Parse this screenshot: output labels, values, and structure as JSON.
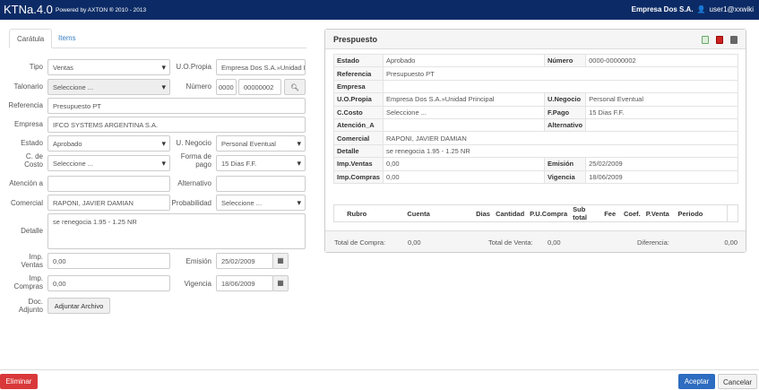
{
  "nav": {
    "brand": "KTNa.4.0",
    "powered": "Powered by AXTON ® 2010 - 2013",
    "company": "Empresa Dos S.A.",
    "user": "user1@xxwiki",
    "user_icon": "user-icon"
  },
  "tabs": [
    {
      "label": "Carátula",
      "active": true
    },
    {
      "label": "Items",
      "active": false
    }
  ],
  "form": {
    "tipo": {
      "label": "Tipo",
      "value": "Ventas"
    },
    "uopropia": {
      "label": "U.O.Propia",
      "value": "Empresa Dos S.A.»Unidad Principal"
    },
    "talonario": {
      "label": "Talonario",
      "value": "Seleccione ..."
    },
    "numero": {
      "label": "Número",
      "prefix": "0000",
      "value": "00000002"
    },
    "referencia": {
      "label": "Referencia",
      "value": "Presupuesto PT"
    },
    "empresa": {
      "label": "Empresa",
      "value": "IFCO SYSTEMS ARGENTINA S.A."
    },
    "estado": {
      "label": "Estado",
      "value": "Aprobado"
    },
    "unegocio": {
      "label": "U. Negocio",
      "value": "Personal Eventual"
    },
    "ccosto": {
      "label1": "C. de",
      "label2": "Costo",
      "value": "Seleccione ..."
    },
    "fpago": {
      "label1": "Forma de",
      "label2": "pago",
      "value": "15 Dias F.F."
    },
    "atencion": {
      "label": "Atención a",
      "value": ""
    },
    "alternativo": {
      "label": "Alternativo",
      "value": ""
    },
    "comercial": {
      "label": "Comercial",
      "value": "RAPONI, JAVIER DAMIAN"
    },
    "probabilidad": {
      "label": "Probabilidad",
      "value": "Seleccione ..."
    },
    "detalle": {
      "label": "Detalle",
      "value": "se renegocia 1.95 - 1.25 NR"
    },
    "impventas": {
      "label1": "Imp.",
      "label2": "Ventas",
      "value": "0,00"
    },
    "emision": {
      "label": "Emisión",
      "value": "25/02/2009"
    },
    "impcompras": {
      "label1": "Imp.",
      "label2": "Compras",
      "value": "0,00"
    },
    "vigencia": {
      "label": "Vigencia",
      "value": "18/06/2009"
    },
    "doc": {
      "label1": "Doc.",
      "label2": "Adjunto",
      "button": "Adjuntar Archivo"
    }
  },
  "panel": {
    "title": "Prespuesto",
    "rows": [
      [
        "Estado",
        "Aprobado",
        "Número",
        "0000-00000002"
      ],
      [
        "Referencia",
        "Presupuesto PT"
      ],
      [
        "Empresa",
        ""
      ],
      [
        "U.O.Propia",
        "Empresa Dos S.A.»Unidad Principal",
        "U.Negocio",
        "Personal Eventual"
      ],
      [
        "C.Costo",
        "Seleccione ...",
        "F.Pago",
        "15 Dias F.F."
      ],
      [
        "Atención_A",
        "",
        "Alternativo",
        ""
      ],
      [
        "Comercial",
        "RAPONI, JAVIER DAMIAN"
      ],
      [
        "Detalle",
        "se renegocia 1.95 - 1.25 NR"
      ],
      [
        "Imp.Ventas",
        "0,00",
        "Emisión",
        "25/02/2009"
      ],
      [
        "Imp.Compras",
        "0,00",
        "Vigencia",
        "18/06/2009"
      ]
    ],
    "items_headers": [
      "",
      "Rubro",
      "Cuenta",
      "Dias",
      "Cantidad",
      "P.U.Compra",
      "Sub total",
      "Fee",
      "Coef.",
      "P.Venta",
      "Periodo",
      ""
    ],
    "total_compra_label": "Total de Compra:",
    "total_compra": "0,00",
    "total_venta_label": "Total de Venta:",
    "total_venta": "0,00",
    "diferencia_label": "Diferencia:",
    "diferencia": "0,00"
  },
  "footer": {
    "delete": "Eliminar",
    "accept": "Aceptar",
    "cancel": "Cancelar"
  },
  "colors": {
    "navbar": "#0c2b66",
    "danger": "#d9383a",
    "primary": "#2d6cc0"
  }
}
